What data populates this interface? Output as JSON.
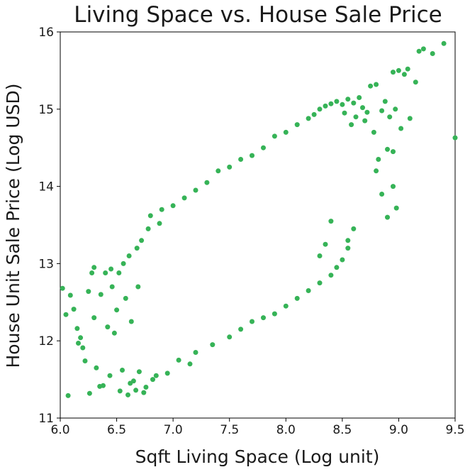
{
  "chart_data": {
    "type": "scatter",
    "title": "Living Space vs. House Sale Price",
    "xlabel": "Sqft Living Space (Log unit)",
    "ylabel": "House Unit Sale Price (Log USD)",
    "xlim": [
      6.0,
      9.5
    ],
    "ylim": [
      11,
      16
    ],
    "xticks": [
      6.0,
      6.5,
      7.0,
      7.5,
      8.0,
      8.5,
      9.0,
      9.5
    ],
    "xtick_labels": [
      "6.0",
      "6.5",
      "7.0",
      "7.5",
      "8.0",
      "8.5",
      "9.0",
      "9.5"
    ],
    "yticks": [
      11,
      12,
      13,
      14,
      15,
      16
    ],
    "ytick_labels": [
      "11",
      "12",
      "13",
      "14",
      "15",
      "16"
    ],
    "grid": false,
    "legend": "none",
    "color": "#36b357",
    "points": [
      [
        6.02,
        12.68
      ],
      [
        6.05,
        12.34
      ],
      [
        6.07,
        11.29
      ],
      [
        6.09,
        12.59
      ],
      [
        6.12,
        12.41
      ],
      [
        6.15,
        12.16
      ],
      [
        6.16,
        11.97
      ],
      [
        6.18,
        12.04
      ],
      [
        6.2,
        11.91
      ],
      [
        6.22,
        11.74
      ],
      [
        6.25,
        12.64
      ],
      [
        6.26,
        11.32
      ],
      [
        6.28,
        12.88
      ],
      [
        6.3,
        12.95
      ],
      [
        6.3,
        12.3
      ],
      [
        6.32,
        11.65
      ],
      [
        6.35,
        11.41
      ],
      [
        6.36,
        12.6
      ],
      [
        6.38,
        11.42
      ],
      [
        6.4,
        12.88
      ],
      [
        6.42,
        12.18
      ],
      [
        6.44,
        11.55
      ],
      [
        6.45,
        12.93
      ],
      [
        6.46,
        12.7
      ],
      [
        6.48,
        12.1
      ],
      [
        6.5,
        12.4
      ],
      [
        6.52,
        12.88
      ],
      [
        6.53,
        11.35
      ],
      [
        6.55,
        11.62
      ],
      [
        6.56,
        13.0
      ],
      [
        6.58,
        12.55
      ],
      [
        6.6,
        11.3
      ],
      [
        6.61,
        13.1
      ],
      [
        6.62,
        11.45
      ],
      [
        6.63,
        12.25
      ],
      [
        6.65,
        11.48
      ],
      [
        6.67,
        11.36
      ],
      [
        6.68,
        13.2
      ],
      [
        6.69,
        12.7
      ],
      [
        6.7,
        11.6
      ],
      [
        6.72,
        13.3
      ],
      [
        6.74,
        11.33
      ],
      [
        6.76,
        11.4
      ],
      [
        6.78,
        13.45
      ],
      [
        6.8,
        13.62
      ],
      [
        6.82,
        11.5
      ],
      [
        6.85,
        11.55
      ],
      [
        6.88,
        13.52
      ],
      [
        6.9,
        13.7
      ],
      [
        6.95,
        11.58
      ],
      [
        7.0,
        13.75
      ],
      [
        7.05,
        11.75
      ],
      [
        7.1,
        13.85
      ],
      [
        7.15,
        11.7
      ],
      [
        7.2,
        13.95
      ],
      [
        7.3,
        14.05
      ],
      [
        7.4,
        14.2
      ],
      [
        7.5,
        14.25
      ],
      [
        7.6,
        14.35
      ],
      [
        7.7,
        14.4
      ],
      [
        7.8,
        14.5
      ],
      [
        7.9,
        14.65
      ],
      [
        8.0,
        14.7
      ],
      [
        8.1,
        14.8
      ],
      [
        8.2,
        14.88
      ],
      [
        8.25,
        14.93
      ],
      [
        8.3,
        15.0
      ],
      [
        8.35,
        15.04
      ],
      [
        8.4,
        15.07
      ],
      [
        8.45,
        15.1
      ],
      [
        8.5,
        15.06
      ],
      [
        8.52,
        14.95
      ],
      [
        8.55,
        15.13
      ],
      [
        8.58,
        14.8
      ],
      [
        8.6,
        15.08
      ],
      [
        8.62,
        14.9
      ],
      [
        8.65,
        15.15
      ],
      [
        8.68,
        15.02
      ],
      [
        8.7,
        14.85
      ],
      [
        8.72,
        14.96
      ],
      [
        8.75,
        15.3
      ],
      [
        8.78,
        14.7
      ],
      [
        8.8,
        15.32
      ],
      [
        8.8,
        14.2
      ],
      [
        8.82,
        14.35
      ],
      [
        8.85,
        14.98
      ],
      [
        8.85,
        13.9
      ],
      [
        8.88,
        15.1
      ],
      [
        8.9,
        14.48
      ],
      [
        8.9,
        13.6
      ],
      [
        8.92,
        14.9
      ],
      [
        8.95,
        15.48
      ],
      [
        8.95,
        14.45
      ],
      [
        8.95,
        14.0
      ],
      [
        8.97,
        15.0
      ],
      [
        8.98,
        13.72
      ],
      [
        9.0,
        15.5
      ],
      [
        9.02,
        14.75
      ],
      [
        9.05,
        15.45
      ],
      [
        9.08,
        15.52
      ],
      [
        9.1,
        14.88
      ],
      [
        9.15,
        15.35
      ],
      [
        9.18,
        15.75
      ],
      [
        9.22,
        15.78
      ],
      [
        9.3,
        15.72
      ],
      [
        9.4,
        15.85
      ],
      [
        9.5,
        14.63
      ],
      [
        7.2,
        11.85
      ],
      [
        7.35,
        11.95
      ],
      [
        7.5,
        12.05
      ],
      [
        7.6,
        12.15
      ],
      [
        7.7,
        12.25
      ],
      [
        7.8,
        12.3
      ],
      [
        7.9,
        12.35
      ],
      [
        8.0,
        12.45
      ],
      [
        8.1,
        12.55
      ],
      [
        8.2,
        12.65
      ],
      [
        8.3,
        12.75
      ],
      [
        8.4,
        12.85
      ],
      [
        8.45,
        12.95
      ],
      [
        8.5,
        13.05
      ],
      [
        8.55,
        13.2
      ],
      [
        8.4,
        13.55
      ],
      [
        8.3,
        13.1
      ],
      [
        8.35,
        13.25
      ],
      [
        8.55,
        13.3
      ],
      [
        8.6,
        13.45
      ]
    ]
  }
}
